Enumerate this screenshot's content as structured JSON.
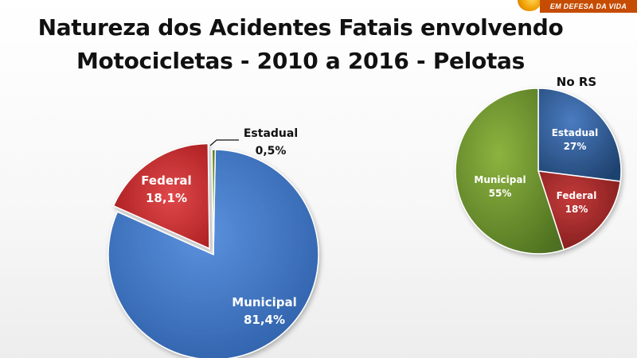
{
  "page": {
    "title_line1": "Natureza dos Acidentes Fatais envolvendo",
    "title_line2": "Motocicletas - 2010 a 2016 - Pelotas"
  },
  "logo": {
    "text": "EM DEFESA DA VIDA"
  },
  "chart_data": [
    {
      "type": "pie",
      "title": "Natureza dos Acidentes Fatais envolvendo Motocicletas - 2010 a 2016 - Pelotas",
      "categories": [
        "Municipal",
        "Federal",
        "Estadual"
      ],
      "values": [
        81.4,
        18.1,
        0.5
      ],
      "value_labels": [
        "81,4%",
        "18,1%",
        "0,5%"
      ],
      "colors": [
        "#3d74c4",
        "#c8282a",
        "#6b8e23"
      ],
      "exploded": "Federal"
    },
    {
      "type": "pie",
      "title": "No RS",
      "categories": [
        "Estadual",
        "Federal",
        "Municipal"
      ],
      "values": [
        27,
        18,
        55
      ],
      "value_labels": [
        "27%",
        "18%",
        "55%"
      ],
      "colors": [
        "#2f5c94",
        "#a52a2a",
        "#6f9a30"
      ]
    }
  ]
}
